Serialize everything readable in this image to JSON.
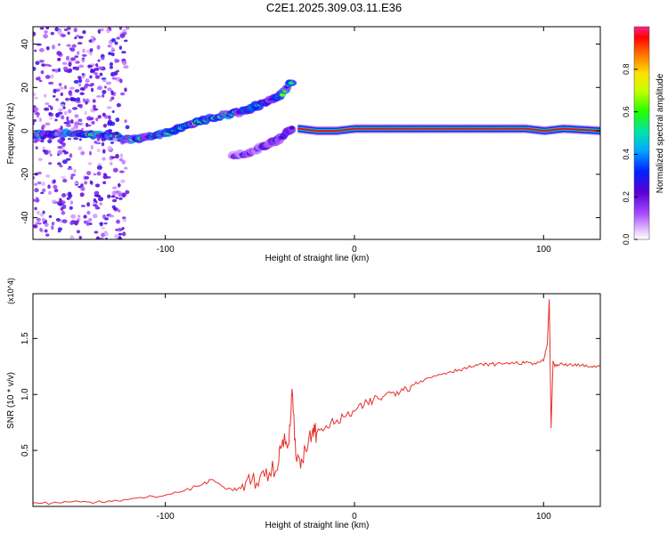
{
  "figure": {
    "title": "C2E1.2025.309.03.11.E36"
  },
  "colors": {
    "snr_line": "#e8302a",
    "axis": "#000000",
    "background": "#ffffff"
  },
  "chart_data": [
    {
      "type": "heatmap",
      "title": "",
      "xlabel": "Height of straight line (km)",
      "ylabel": "Frequency (Hz)",
      "xlim": [
        -170,
        130
      ],
      "ylim": [
        -50,
        48
      ],
      "xticks": [
        -100,
        0,
        100
      ],
      "xtick_labels": [
        "-100",
        "0",
        "100"
      ],
      "yticks": [
        -40,
        -20,
        0,
        20,
        40
      ],
      "ytick_labels": [
        "-40",
        "-20",
        "0",
        "20",
        "40"
      ],
      "grid": false,
      "colorbar": {
        "label": "Normalized spectral amplitude",
        "range": [
          0,
          1
        ],
        "ticks": [
          0,
          0.2,
          0.4,
          0.6,
          0.8
        ],
        "tick_labels": [
          "0.0",
          "0.2",
          "0.4",
          "0.6",
          "0.8"
        ],
        "colormap": "rainbow-violet-to-red",
        "placement": "right"
      },
      "features": [
        {
          "name": "main_trace",
          "points": [
            [
              -170,
              -2
            ],
            [
              -150,
              -1
            ],
            [
              -130,
              -2
            ],
            [
              -120,
              -4
            ],
            [
              -110,
              -3
            ],
            [
              -100,
              -1
            ],
            [
              -90,
              2
            ],
            [
              -80,
              5
            ],
            [
              -70,
              7
            ],
            [
              -60,
              9
            ],
            [
              -50,
              12
            ],
            [
              -45,
              14
            ],
            [
              -38,
              17
            ],
            [
              -35,
              21
            ],
            [
              -33,
              23
            ]
          ],
          "amplitude": 0.55
        },
        {
          "name": "lower_branch",
          "points": [
            [
              -65,
              -12
            ],
            [
              -55,
              -10
            ],
            [
              -48,
              -7
            ],
            [
              -40,
              -4
            ],
            [
              -35,
              0
            ],
            [
              -32,
              2
            ]
          ],
          "amplitude": 0.3
        },
        {
          "name": "flat_trace",
          "points": [
            [
              -30,
              1
            ],
            [
              -20,
              0
            ],
            [
              -10,
              0
            ],
            [
              0,
              1
            ],
            [
              20,
              1
            ],
            [
              60,
              1
            ],
            [
              90,
              1
            ],
            [
              100,
              0
            ],
            [
              110,
              1
            ],
            [
              130,
              0
            ]
          ],
          "amplitude": 0.95
        },
        {
          "name": "noise_region",
          "x_range": [
            -170,
            -120
          ],
          "y_range": [
            -50,
            48
          ],
          "amplitude": 0.15
        }
      ]
    },
    {
      "type": "line",
      "title": "",
      "xlabel": "Height of straight line (km)",
      "ylabel": "SNR (10 * v/v)",
      "y_multiplier": "(x10^4)",
      "xlim": [
        -170,
        130
      ],
      "ylim": [
        0,
        1.9
      ],
      "xticks": [
        -100,
        0,
        100
      ],
      "xtick_labels": [
        "-100",
        "0",
        "100"
      ],
      "yticks": [
        0.5,
        1.0,
        1.5
      ],
      "ytick_labels": [
        "0.5",
        "1.0",
        "1.5"
      ],
      "grid": false,
      "series": [
        {
          "x": [
            -170,
            -160,
            -150,
            -140,
            -130,
            -120,
            -110,
            -100,
            -90,
            -80,
            -75,
            -70,
            -65,
            -60,
            -55,
            -50,
            -45,
            -40,
            -38,
            -35,
            -33,
            -31,
            -28,
            -25,
            -22,
            -20,
            -15,
            -10,
            -5,
            0,
            5,
            10,
            15,
            20,
            25,
            30,
            35,
            40,
            45,
            50,
            55,
            60,
            65,
            70,
            75,
            80,
            85,
            90,
            95,
            100,
            102,
            103,
            104,
            105,
            106,
            108,
            110,
            115,
            120,
            125,
            130
          ],
          "y": [
            0.03,
            0.03,
            0.04,
            0.04,
            0.05,
            0.06,
            0.08,
            0.1,
            0.14,
            0.2,
            0.24,
            0.18,
            0.15,
            0.16,
            0.2,
            0.26,
            0.3,
            0.4,
            0.6,
            0.55,
            1.05,
            0.45,
            0.42,
            0.5,
            0.7,
            0.65,
            0.72,
            0.75,
            0.8,
            0.85,
            0.9,
            0.95,
            0.98,
            1.02,
            1.05,
            1.08,
            1.12,
            1.15,
            1.18,
            1.2,
            1.22,
            1.24,
            1.26,
            1.27,
            1.27,
            1.28,
            1.28,
            1.28,
            1.28,
            1.3,
            1.45,
            1.85,
            0.7,
            1.3,
            1.25,
            1.26,
            1.27,
            1.26,
            1.26,
            1.25,
            1.25
          ]
        }
      ]
    }
  ]
}
